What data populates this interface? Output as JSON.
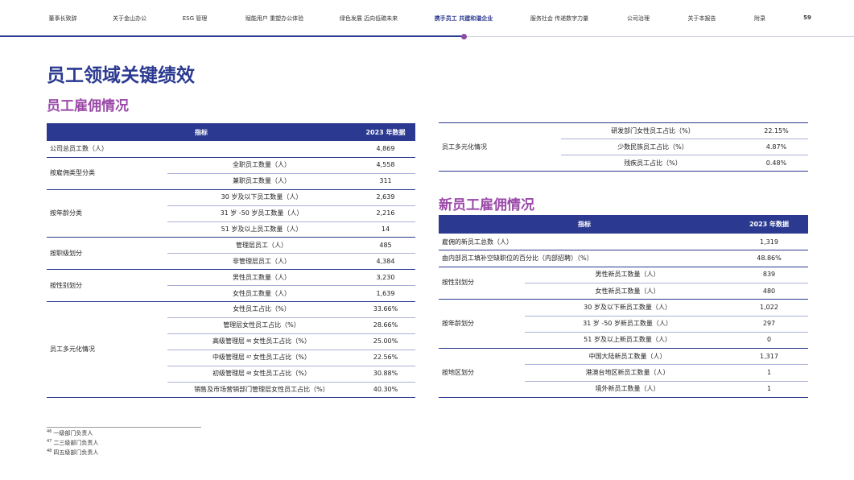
{
  "nav": {
    "items": [
      "董事长致辞",
      "关于金山办公",
      "ESG 管理",
      "赋能用户 重塑办公体验",
      "绿色发展 迈向低碳未来",
      "携手员工 共建和谐企业",
      "服务社会 传递数字力量",
      "公司治理",
      "关于本报告",
      "附录"
    ],
    "page": "59"
  },
  "title": "员工领域关键绩效",
  "section1": {
    "title": "员工雇佣情况",
    "header": [
      "指标",
      "2023 年数据"
    ],
    "rows": [
      {
        "label": "公司总员工数（人）",
        "value": "4,869"
      },
      {
        "group": "按雇佣类型分类",
        "items": [
          {
            "label": "全职员工数量（人）",
            "value": "4,558"
          },
          {
            "label": "兼职员工数量（人）",
            "value": "311"
          }
        ]
      },
      {
        "group": "按年龄分类",
        "items": [
          {
            "label": "30 岁及以下员工数量（人）",
            "value": "2,639"
          },
          {
            "label": "31 岁 -50 岁员工数量（人）",
            "value": "2,216"
          },
          {
            "label": "51 岁及以上员工数量（人）",
            "value": "14"
          }
        ]
      },
      {
        "group": "按职级划分",
        "items": [
          {
            "label": "管理层员工（人）",
            "value": "485"
          },
          {
            "label": "非管理层员工（人）",
            "value": "4,384"
          }
        ]
      },
      {
        "group": "按性别划分",
        "items": [
          {
            "label": "男性员工数量（人）",
            "value": "3,230"
          },
          {
            "label": "女性员工数量（人）",
            "value": "1,639"
          }
        ]
      },
      {
        "group": "员工多元化情况",
        "items": [
          {
            "label": "女性员工占比（%）",
            "value": "33.66%"
          },
          {
            "label": "管理层女性员工占比（%）",
            "value": "28.66%"
          },
          {
            "label": {
              "pre": "高级管理层",
              "sup": "46",
              "post": "女性员工占比（%）"
            },
            "value": "25.00%"
          },
          {
            "label": {
              "pre": "中级管理层",
              "sup": "47",
              "post": "女性员工占比（%）"
            },
            "value": "22.56%"
          },
          {
            "label": {
              "pre": "初级管理层",
              "sup": "48",
              "post": "女性员工占比（%）"
            },
            "value": "30.88%"
          },
          {
            "label": "销售及市场营销部门管理层女性员工占比（%）",
            "value": "40.30%"
          }
        ]
      }
    ],
    "continued": [
      {
        "group": "员工多元化情况",
        "items": [
          {
            "label": "研发部门女性员工占比（%）",
            "value": "22.15%"
          },
          {
            "label": "少数民族员工占比（%）",
            "value": "4.87%"
          },
          {
            "label": "残疾员工占比（%）",
            "value": "0.48%"
          }
        ]
      }
    ]
  },
  "section2": {
    "title": "新员工雇佣情况",
    "header": [
      "指标",
      "2023 年数据"
    ],
    "rows": [
      {
        "label": "雇佣的新员工总数（人）",
        "value": "1,319"
      },
      {
        "label": "由内部员工填补空缺职位的百分比（内部招聘）（%）",
        "value": "48.86%"
      },
      {
        "group": "按性别划分",
        "items": [
          {
            "label": "男性新员工数量（人）",
            "value": "839"
          },
          {
            "label": "女性新员工数量（人）",
            "value": "480"
          }
        ]
      },
      {
        "group": "按年龄划分",
        "items": [
          {
            "label": "30 岁及以下新员工数量（人）",
            "value": "1,022"
          },
          {
            "label": "31 岁 -50 岁新员工数量（人）",
            "value": "297"
          },
          {
            "label": "51 岁及以上新员工数量（人）",
            "value": "0"
          }
        ]
      },
      {
        "group": "按地区划分",
        "items": [
          {
            "label": "中国大陆新员工数量（人）",
            "value": "1,317"
          },
          {
            "label": "港澳台地区新员工数量（人）",
            "value": "1"
          },
          {
            "label": "境外新员工数量（人）",
            "value": "1"
          }
        ]
      }
    ]
  },
  "footnotes": [
    {
      "num": "46",
      "text": "一级部门负责人"
    },
    {
      "num": "47",
      "text": "二三级部门负责人"
    },
    {
      "num": "48",
      "text": "四五级部门负责人"
    }
  ]
}
